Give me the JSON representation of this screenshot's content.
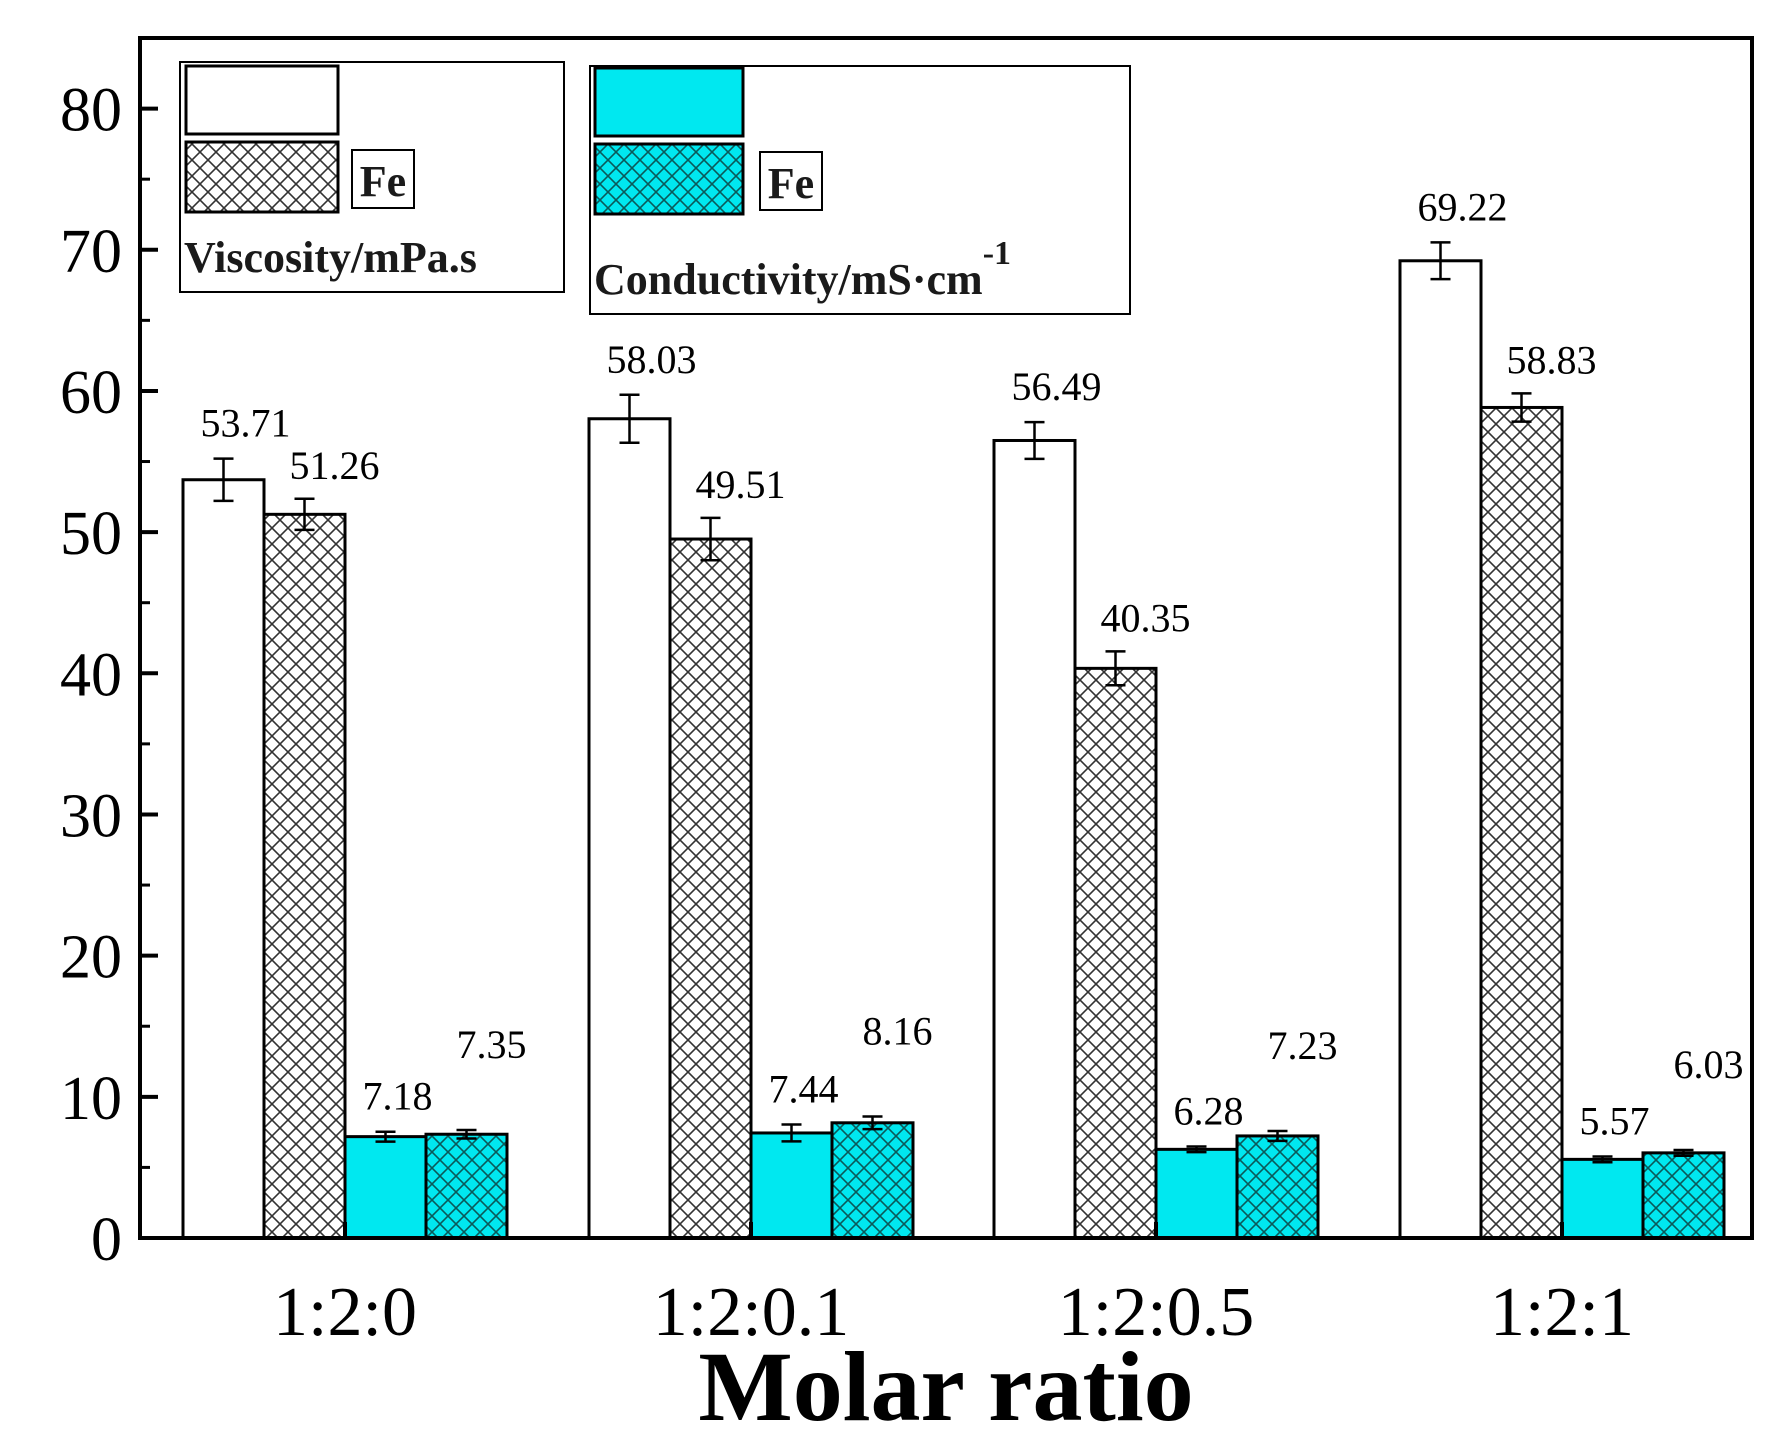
{
  "chart_data": {
    "type": "bar",
    "title": "",
    "xlabel": "Molar ratio",
    "ylabel": "",
    "ylim": [
      0,
      85
    ],
    "yticks": [
      0,
      10,
      20,
      30,
      40,
      50,
      60,
      70,
      80
    ],
    "categories": [
      "1:2:0",
      "1:2:0.1",
      "1:2:0.5",
      "1:2:1"
    ],
    "series": [
      {
        "name": "Viscosity (no Fe)",
        "pattern": "plain",
        "fill": "#ffffff",
        "values": [
          53.71,
          58.03,
          56.49,
          69.22
        ],
        "errors": [
          1.5,
          1.7,
          1.3,
          1.3
        ],
        "labels": [
          "53.71",
          "58.03",
          "56.49",
          "69.22"
        ]
      },
      {
        "name": "Viscosity (Fe)",
        "pattern": "crosshatch",
        "fill": "#ffffff",
        "values": [
          51.26,
          49.51,
          40.35,
          58.83
        ],
        "errors": [
          1.1,
          1.5,
          1.2,
          1.0
        ],
        "labels": [
          "51.26",
          "49.51",
          "40.35",
          "58.83"
        ]
      },
      {
        "name": "Conductivity (no Fe)",
        "pattern": "plain",
        "fill": "#00e8f0",
        "values": [
          7.18,
          7.44,
          6.28,
          5.57
        ],
        "errors": [
          0.35,
          0.6,
          0.2,
          0.2
        ],
        "labels": [
          "7.18",
          "7.44",
          "6.28",
          "5.57"
        ]
      },
      {
        "name": "Conductivity (Fe)",
        "pattern": "crosshatch",
        "fill": "#00e8f0",
        "values": [
          7.35,
          8.16,
          7.23,
          6.03
        ],
        "errors": [
          0.3,
          0.45,
          0.35,
          0.2
        ],
        "labels": [
          "7.35",
          "8.16",
          "7.23",
          "6.03"
        ]
      }
    ],
    "legend": {
      "position": "top-left",
      "groups": [
        {
          "title": "Viscosity/mPa.s",
          "fe_label": "Fe"
        },
        {
          "title": "Conductivity/mS·cm",
          "title_superscript": "-1",
          "fe_label": "Fe"
        }
      ]
    },
    "colors": {
      "cyan": "#00e8f0",
      "hatch_dark": "#333333",
      "axis": "#000000"
    },
    "grid": false,
    "error_bars": true
  }
}
